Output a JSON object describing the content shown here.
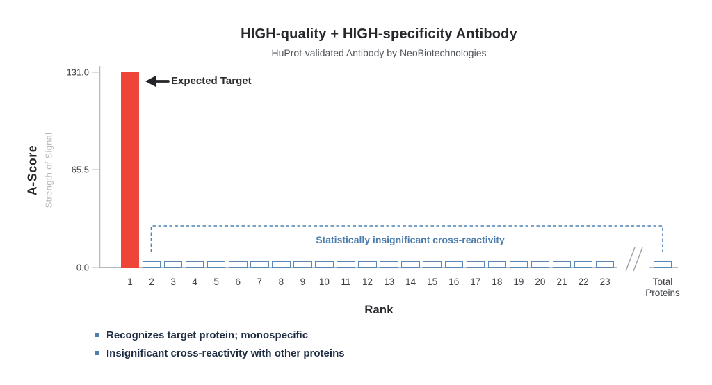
{
  "title": "HIGH-quality + HIGH-specificity Antibody",
  "subtitle": "HuProt-validated Antibody by NeoBiotechnologies",
  "chart_data": {
    "type": "bar",
    "categories": [
      "1",
      "2",
      "3",
      "4",
      "5",
      "6",
      "7",
      "8",
      "9",
      "10",
      "11",
      "12",
      "13",
      "14",
      "15",
      "16",
      "17",
      "18",
      "19",
      "20",
      "21",
      "22",
      "23",
      "Total Proteins"
    ],
    "values": [
      131.0,
      4,
      4,
      4,
      4,
      4,
      4,
      4,
      4,
      4,
      4,
      4,
      4,
      4,
      4,
      4,
      4,
      4,
      4,
      4,
      4,
      4,
      4,
      4
    ],
    "title": "HIGH-quality + HIGH-specificity Antibody",
    "subtitle": "HuProt-validated Antibody by NeoBiotechnologies",
    "xlabel": "Rank",
    "ylabel": "A-Score",
    "ylabel_sub": "Strength of Signal",
    "ylim": [
      0,
      131
    ],
    "yticks": [
      {
        "label": "0.0",
        "value": 0
      },
      {
        "label": "65.5",
        "value": 65.5
      },
      {
        "label": "131.0",
        "value": 131
      }
    ],
    "grid": false,
    "axis_break_before_last": true,
    "annotations": {
      "expected_target": "Expected Target",
      "cross_reactivity": "Statistically insignificant cross-reactivity"
    }
  },
  "legend": [
    {
      "label": "Recognizes target protein; monospecific"
    },
    {
      "label": "Insignificant cross-reactivity with other proteins"
    }
  ],
  "colors": {
    "target_bar": "#EF4438",
    "bar_outline": "#5B87B2",
    "dashed_blue": "#4D82B8",
    "annotation_blue": "#4A7DAD",
    "axis_line": "#B6BABE",
    "break_gray": "#9AA0A6",
    "arrow_dark": "#232528",
    "legend_bullet": "#4D7FAE"
  }
}
